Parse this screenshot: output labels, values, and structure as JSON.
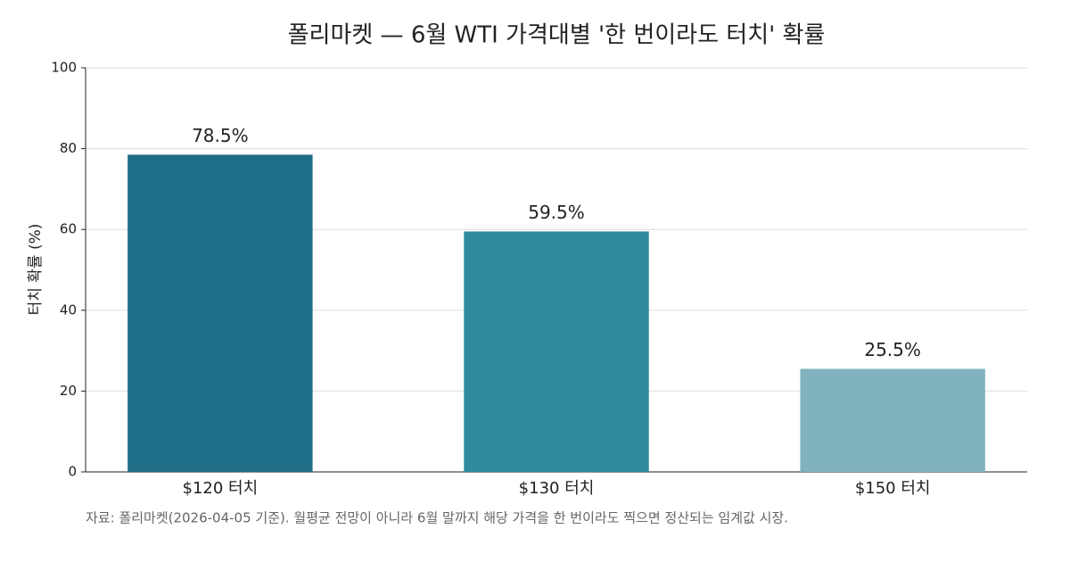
{
  "chart_data": {
    "type": "bar",
    "title": "폴리마켓 — 6월 WTI 가격대별 '한 번이라도 터치' 확률",
    "ylabel": "터치 확률 (%)",
    "categories": [
      "$120 터치",
      "$130 터치",
      "$150 터치"
    ],
    "values": [
      78.5,
      59.5,
      25.5
    ],
    "value_labels": [
      "78.5%",
      "59.5%",
      "25.5%"
    ],
    "colors": [
      "#1f6e87",
      "#2e8b9d",
      "#80b3be"
    ],
    "ylim": [
      0,
      100
    ],
    "yticks": [
      0,
      20,
      40,
      60,
      80,
      100
    ],
    "grid": true,
    "note": "자료: 폴리마켓(2026-04-05 기준). 월평균 전망이 아니라 6월 말까지 해당 가격을 한 번이라도 찍으면 정산되는 임계값 시장."
  }
}
